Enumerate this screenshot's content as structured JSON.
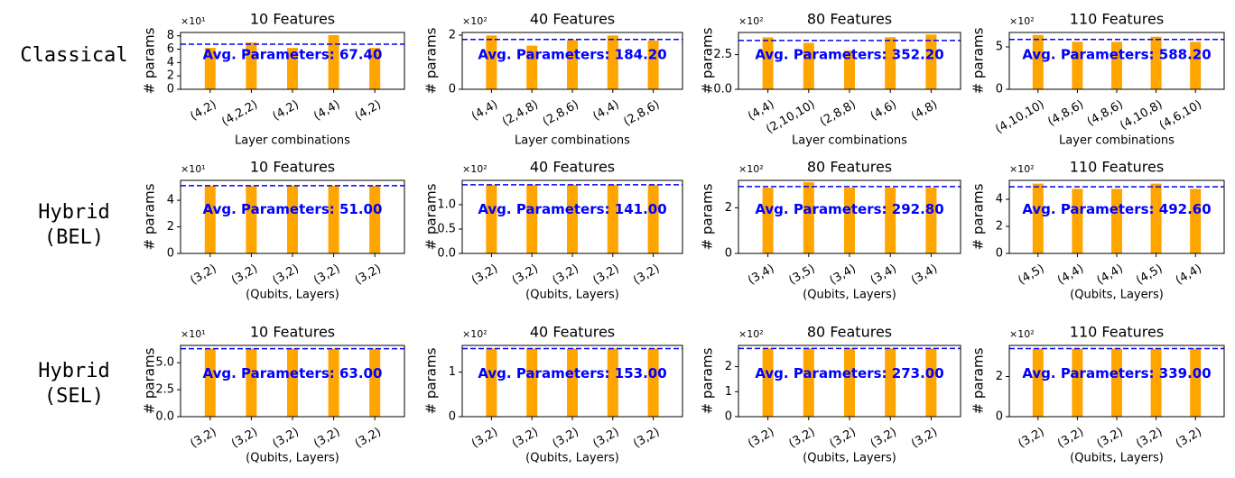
{
  "rows": [
    [
      "Classical"
    ],
    [
      "Hybrid",
      "(BEL)"
    ],
    [
      "Hybrid",
      "(SEL)"
    ]
  ],
  "chart_data": [
    {
      "type": "bar",
      "title": "10 Features",
      "xlabel": "Layer combinations",
      "ylabel": "# params",
      "y_offset": "×10¹",
      "categories": [
        "(4,2)",
        "(4,2,2)",
        "(4,2)",
        "(4,4)",
        "(4,2)"
      ],
      "values": [
        6.2,
        7.0,
        6.2,
        8.1,
        6.2
      ],
      "color": "#ffa500",
      "avg": 6.74,
      "avg_label": "Avg. Parameters: 67.40",
      "avg_color": "#0000ff",
      "ylim": [
        0,
        8.5
      ],
      "yticks": [
        0,
        2,
        4,
        6,
        8
      ]
    },
    {
      "type": "bar",
      "title": "40 Features",
      "xlabel": "Layer combinations",
      "ylabel": "# params",
      "y_offset": "×10²",
      "categories": [
        "(4,4)",
        "(2,4,8)",
        "(2,8,6)",
        "(4,4)",
        "(2,8,6)"
      ],
      "values": [
        1.99,
        1.61,
        1.82,
        1.99,
        1.8
      ],
      "color": "#ffa500",
      "avg": 1.842,
      "avg_label": "Avg. Parameters: 184.20",
      "avg_color": "#0000ff",
      "ylim": [
        0,
        2.1
      ],
      "yticks": [
        0,
        2
      ]
    },
    {
      "type": "bar",
      "title": "80 Features",
      "xlabel": "Layer combinations",
      "ylabel": "# params",
      "y_offset": "×10²",
      "categories": [
        "(4,4)",
        "(2,10,10)",
        "(2,8,8)",
        "(4,6)",
        "(4,8)"
      ],
      "values": [
        3.75,
        3.35,
        2.8,
        3.76,
        3.95
      ],
      "color": "#ffa500",
      "avg": 3.522,
      "avg_label": "Avg. Parameters: 352.20",
      "avg_color": "#0000ff",
      "ylim": [
        0,
        4.1
      ],
      "yticks": [
        {
          "value": 0,
          "label": "0.0"
        },
        2.5
      ]
    },
    {
      "type": "bar",
      "title": "110 Features",
      "xlabel": "Layer combinations",
      "ylabel": "# params",
      "y_offset": "×10²",
      "categories": [
        "(4,10,10)",
        "(4,8,6)",
        "(4,8,6)",
        "(4,10,8)",
        "(4,6,10)"
      ],
      "values": [
        6.4,
        5.6,
        5.6,
        6.2,
        5.6
      ],
      "color": "#ffa500",
      "avg": 5.882,
      "avg_label": "Avg. Parameters: 588.20",
      "avg_color": "#0000ff",
      "ylim": [
        0,
        6.7
      ],
      "yticks": [
        0,
        5
      ]
    },
    {
      "type": "bar",
      "title": "10 Features",
      "xlabel": "(Qubits, Layers)",
      "ylabel": "# params",
      "y_offset": "×10¹",
      "categories": [
        "(3,2)",
        "(3,2)",
        "(3,2)",
        "(3,2)",
        "(3,2)"
      ],
      "values": [
        5.1,
        5.1,
        5.1,
        5.1,
        5.1
      ],
      "color": "#ffa500",
      "avg": 5.1,
      "avg_label": "Avg. Parameters: 51.00",
      "avg_color": "#0000ff",
      "ylim": [
        0,
        5.5
      ],
      "yticks": [
        0,
        2,
        4
      ]
    },
    {
      "type": "bar",
      "title": "40 Features",
      "xlabel": "(Qubits, Layers)",
      "ylabel": "# params",
      "y_offset": "×10²",
      "categories": [
        "(3,2)",
        "(3,2)",
        "(3,2)",
        "(3,2)",
        "(3,2)"
      ],
      "values": [
        1.41,
        1.41,
        1.41,
        1.41,
        1.41
      ],
      "color": "#ffa500",
      "avg": 1.41,
      "avg_label": "Avg. Parameters: 141.00",
      "avg_color": "#0000ff",
      "ylim": [
        0,
        1.5
      ],
      "yticks": [
        {
          "value": 0,
          "label": "0.0"
        },
        0.5,
        {
          "value": 1,
          "label": "1.0"
        }
      ]
    },
    {
      "type": "bar",
      "title": "80 Features",
      "xlabel": "(Qubits, Layers)",
      "ylabel": "# params",
      "y_offset": "×10²",
      "categories": [
        "(3,4)",
        "(3,5)",
        "(3,4)",
        "(3,4)",
        "(3,4)"
      ],
      "values": [
        2.88,
        3.12,
        2.88,
        2.88,
        2.88
      ],
      "color": "#ffa500",
      "avg": 2.928,
      "avg_label": "Avg. Parameters: 292.80",
      "avg_color": "#0000ff",
      "ylim": [
        0,
        3.2
      ],
      "yticks": [
        0,
        2
      ]
    },
    {
      "type": "bar",
      "title": "110 Features",
      "xlabel": "(Qubits, Layers)",
      "ylabel": "# params",
      "y_offset": "×10²",
      "categories": [
        "(4,5)",
        "(4,4)",
        "(4,4)",
        "(4,5)",
        "(4,4)"
      ],
      "values": [
        5.16,
        4.77,
        4.77,
        5.16,
        4.77
      ],
      "color": "#ffa500",
      "avg": 4.926,
      "avg_label": "Avg. Parameters: 492.60",
      "avg_color": "#0000ff",
      "ylim": [
        0,
        5.4
      ],
      "yticks": [
        0,
        2,
        4
      ]
    },
    {
      "type": "bar",
      "title": "10 Features",
      "xlabel": "(Qubits, Layers)",
      "ylabel": "# params",
      "y_offset": "×10¹",
      "categories": [
        "(3,2)",
        "(3,2)",
        "(3,2)",
        "(3,2)",
        "(3,2)"
      ],
      "values": [
        6.3,
        6.3,
        6.3,
        6.3,
        6.3
      ],
      "color": "#ffa500",
      "avg": 6.3,
      "avg_label": "Avg. Parameters: 63.00",
      "avg_color": "#0000ff",
      "ylim": [
        0,
        6.6
      ],
      "yticks": [
        {
          "value": 0,
          "label": "0.0"
        },
        2.5,
        {
          "value": 5,
          "label": "5.0"
        }
      ]
    },
    {
      "type": "bar",
      "title": "40 Features",
      "xlabel": "(Qubits, Layers)",
      "ylabel": "# params",
      "y_offset": "×10²",
      "categories": [
        "(3,2)",
        "(3,2)",
        "(3,2)",
        "(3,2)",
        "(3,2)"
      ],
      "values": [
        1.53,
        1.53,
        1.53,
        1.53,
        1.53
      ],
      "color": "#ffa500",
      "avg": 1.53,
      "avg_label": "Avg. Parameters: 153.00",
      "avg_color": "#0000ff",
      "ylim": [
        0,
        1.6
      ],
      "yticks": [
        0,
        1
      ]
    },
    {
      "type": "bar",
      "title": "80 Features",
      "xlabel": "(Qubits, Layers)",
      "ylabel": "# params",
      "y_offset": "×10²",
      "categories": [
        "(3,2)",
        "(3,2)",
        "(3,2)",
        "(3,2)",
        "(3,2)"
      ],
      "values": [
        2.73,
        2.73,
        2.73,
        2.73,
        2.73
      ],
      "color": "#ffa500",
      "avg": 2.73,
      "avg_label": "Avg. Parameters: 273.00",
      "avg_color": "#0000ff",
      "ylim": [
        0,
        2.85
      ],
      "yticks": [
        0,
        1,
        2
      ]
    },
    {
      "type": "bar",
      "title": "110 Features",
      "xlabel": "(Qubits, Layers)",
      "ylabel": "# params",
      "y_offset": "×10²",
      "categories": [
        "(3,2)",
        "(3,2)",
        "(3,2)",
        "(3,2)",
        "(3,2)"
      ],
      "values": [
        3.39,
        3.39,
        3.39,
        3.39,
        3.39
      ],
      "color": "#ffa500",
      "avg": 3.39,
      "avg_label": "Avg. Parameters: 339.00",
      "avg_color": "#0000ff",
      "ylim": [
        0,
        3.55
      ],
      "yticks": [
        0,
        2
      ]
    }
  ]
}
